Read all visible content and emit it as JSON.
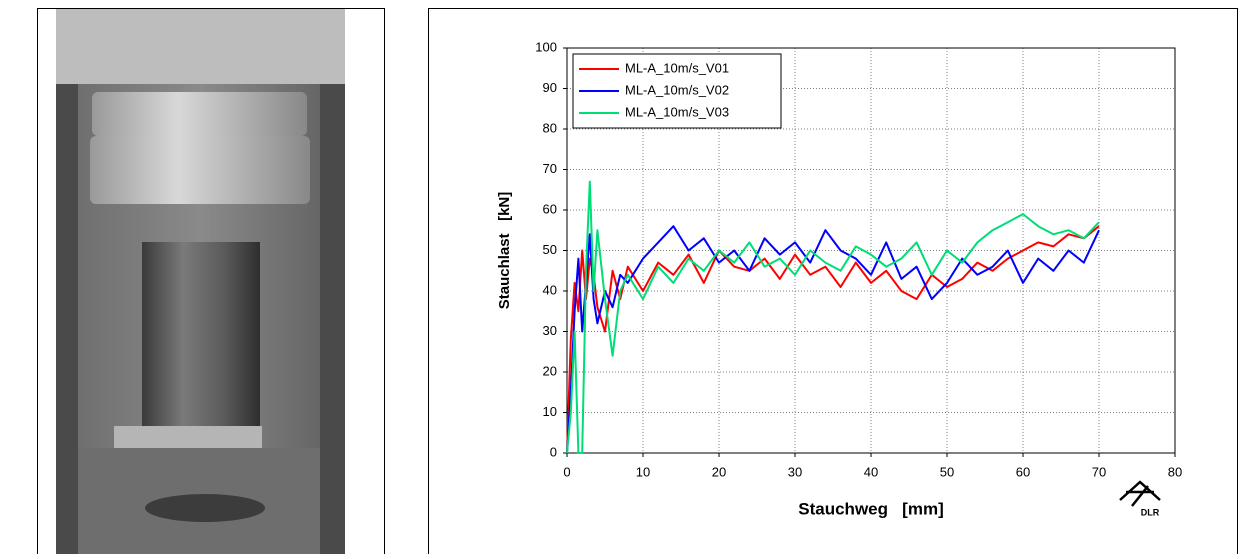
{
  "chart_data": {
    "type": "line",
    "xlabel": "Stauchweg   [mm]",
    "ylabel": "Stauchlast   [kN]",
    "logo": "DLR",
    "xlim": [
      0,
      80
    ],
    "xticks": [
      0,
      10,
      20,
      30,
      40,
      50,
      60,
      70,
      80
    ],
    "ylim": [
      0,
      100
    ],
    "yticks": [
      0,
      10,
      20,
      30,
      40,
      50,
      60,
      70,
      80,
      90,
      100
    ],
    "grid": true,
    "legend": "upper left",
    "x": [
      0,
      0.5,
      1,
      1.5,
      2,
      2.5,
      3,
      3.5,
      4,
      5,
      6,
      7,
      8,
      10,
      12,
      14,
      16,
      18,
      20,
      22,
      24,
      26,
      28,
      30,
      32,
      34,
      36,
      38,
      40,
      42,
      44,
      46,
      48,
      50,
      52,
      54,
      56,
      58,
      60,
      62,
      64,
      66,
      68,
      70
    ],
    "series": [
      {
        "name": "ML-A_10m/s_V01",
        "color": "#ff0000",
        "values": [
          0,
          28,
          42,
          35,
          50,
          38,
          48,
          44,
          36,
          30,
          45,
          38,
          46,
          40,
          47,
          44,
          49,
          42,
          50,
          46,
          45,
          48,
          43,
          49,
          44,
          46,
          41,
          47,
          42,
          45,
          40,
          38,
          44,
          41,
          43,
          47,
          45,
          48,
          50,
          52,
          51,
          54,
          53,
          56
        ]
      },
      {
        "name": "ML-A_10m/s_V02",
        "color": "#0000ff",
        "values": [
          0,
          15,
          35,
          48,
          30,
          42,
          54,
          38,
          32,
          40,
          36,
          44,
          42,
          48,
          52,
          56,
          50,
          53,
          47,
          50,
          45,
          53,
          49,
          52,
          47,
          55,
          50,
          48,
          44,
          52,
          43,
          46,
          38,
          42,
          48,
          44,
          46,
          50,
          42,
          48,
          45,
          50,
          47,
          55
        ]
      },
      {
        "name": "ML-A_10m/s_V03",
        "color": "#00dd77",
        "values": [
          0,
          10,
          30,
          0,
          0,
          45,
          67,
          40,
          55,
          38,
          24,
          40,
          44,
          38,
          46,
          42,
          48,
          45,
          50,
          47,
          52,
          46,
          48,
          44,
          50,
          47,
          45,
          51,
          49,
          46,
          48,
          52,
          44,
          50,
          47,
          52,
          55,
          57,
          59,
          56,
          54,
          55,
          53,
          57
        ]
      }
    ]
  }
}
